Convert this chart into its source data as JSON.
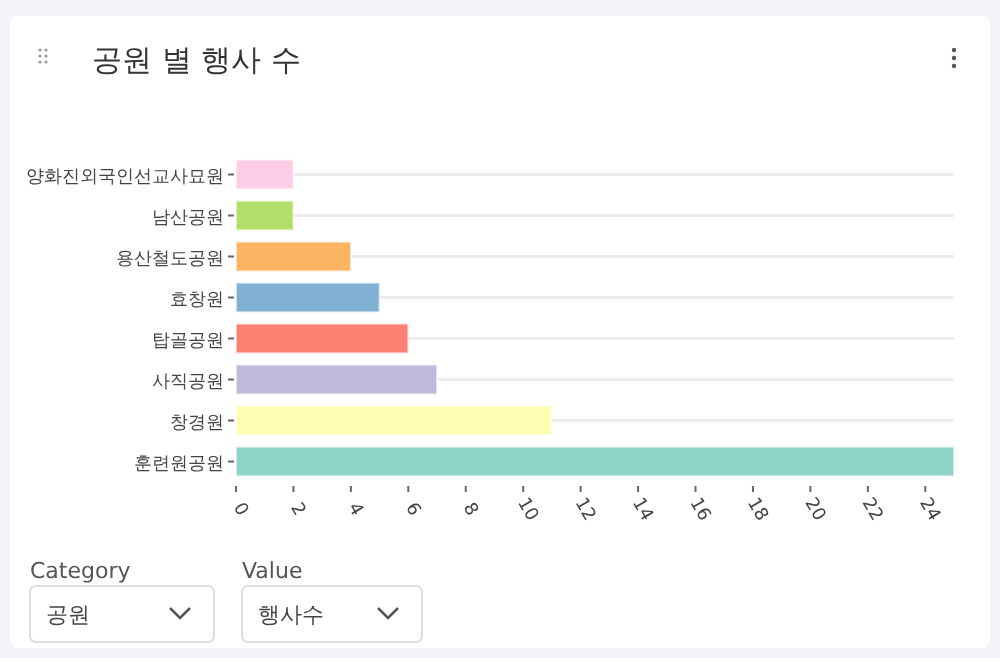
{
  "chart_data": {
    "type": "bar",
    "orientation": "horizontal",
    "title": "공원 별 행사 수",
    "categories": [
      "양화진외국인선교사묘원",
      "남산공원",
      "용산철도공원",
      "효창원",
      "탑골공원",
      "사직공원",
      "창경원",
      "훈련원공원"
    ],
    "values": [
      2,
      2,
      4,
      5,
      6,
      7,
      11,
      25
    ],
    "colors": [
      "#fccde5",
      "#b3de69",
      "#fdb462",
      "#80b1d3",
      "#fb8072",
      "#bebada",
      "#ffffb3",
      "#8dd3c7"
    ],
    "xlim": [
      0,
      25
    ],
    "xticks": [
      0,
      2,
      4,
      6,
      8,
      10,
      12,
      14,
      16,
      18,
      20,
      22,
      24
    ],
    "grid": "y",
    "annotations": [
      "Category",
      "공원",
      "Value",
      "행사수"
    ]
  }
}
